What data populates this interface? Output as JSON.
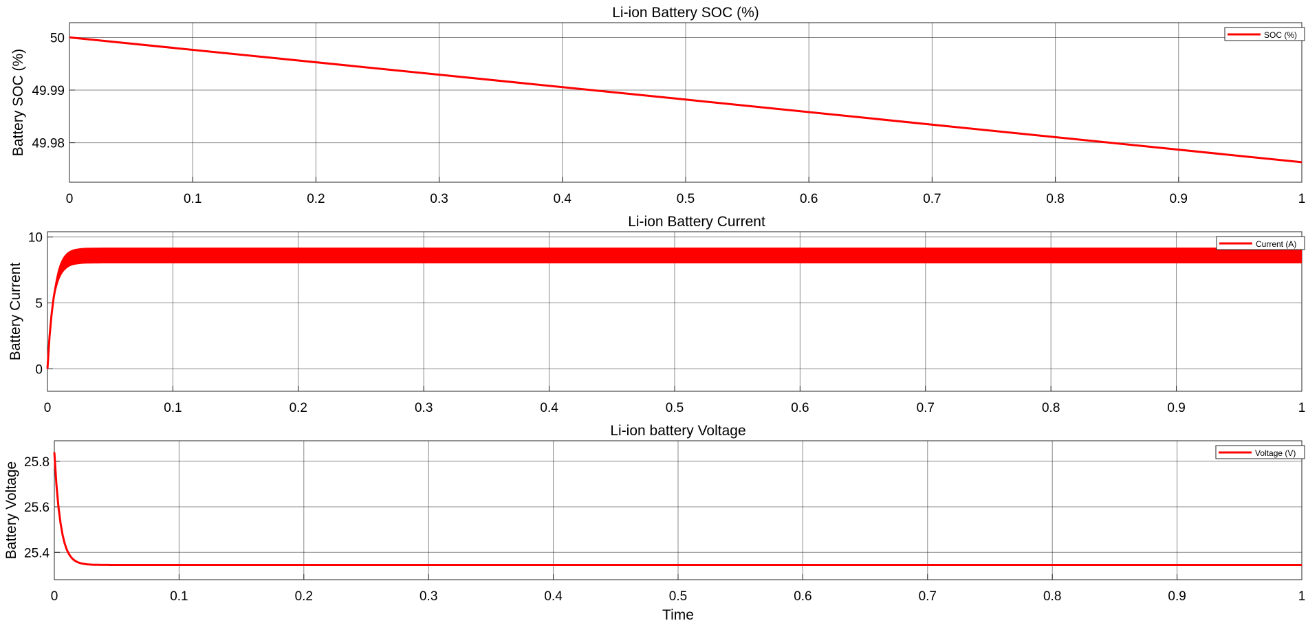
{
  "chart_data": [
    {
      "type": "line",
      "title": "Li-ion Battery SOC (%)",
      "xlabel": "",
      "ylabel": "Battery SOC (%)",
      "xlim": [
        0,
        1
      ],
      "ylim": [
        49.9725,
        50.0028
      ],
      "xticks": [
        0,
        0.1,
        0.2,
        0.3,
        0.4,
        0.5,
        0.6,
        0.7,
        0.8,
        0.9,
        1
      ],
      "xtick_labels": [
        "0",
        "0.1",
        "0.2",
        "0.3",
        "0.4",
        "0.5",
        "0.6",
        "0.7",
        "0.8",
        "0.9",
        "1"
      ],
      "yticks": [
        49.98,
        49.99,
        50
      ],
      "ytick_labels": [
        "49.98",
        "49.99",
        "50"
      ],
      "grid": true,
      "legend_position": "top-right",
      "color": "#ff0000",
      "series": [
        {
          "name": "SOC (%)",
          "x": [
            0,
            0.5,
            1
          ],
          "y": [
            50.0,
            49.9882,
            49.9763
          ]
        }
      ]
    },
    {
      "type": "line",
      "title": "Li-ion Battery Current",
      "xlabel": "",
      "ylabel": "Battery Current",
      "xlim": [
        0,
        1
      ],
      "ylim": [
        -1.7,
        10.4
      ],
      "xticks": [
        0,
        0.1,
        0.2,
        0.3,
        0.4,
        0.5,
        0.6,
        0.7,
        0.8,
        0.9,
        1
      ],
      "xtick_labels": [
        "0",
        "0.1",
        "0.2",
        "0.3",
        "0.4",
        "0.5",
        "0.6",
        "0.7",
        "0.8",
        "0.9",
        "1"
      ],
      "yticks": [
        0,
        5,
        10
      ],
      "ytick_labels": [
        "0",
        "5",
        "10"
      ],
      "grid": true,
      "legend_position": "top-right",
      "color": "#ff0000",
      "series": [
        {
          "name": "Current (A)",
          "steady_mean": 8.6,
          "ripple_min": 8.0,
          "ripple_max": 9.2,
          "rise_time_constant": 0.005
        }
      ]
    },
    {
      "type": "line",
      "title": "Li-ion battery Voltage",
      "xlabel": "Time",
      "ylabel": "Battery Voltage",
      "xlim": [
        0,
        1
      ],
      "ylim": [
        25.28,
        25.89
      ],
      "xticks": [
        0,
        0.1,
        0.2,
        0.3,
        0.4,
        0.5,
        0.6,
        0.7,
        0.8,
        0.9,
        1
      ],
      "xtick_labels": [
        "0",
        "0.1",
        "0.2",
        "0.3",
        "0.4",
        "0.5",
        "0.6",
        "0.7",
        "0.8",
        "0.9",
        "1"
      ],
      "yticks": [
        25.4,
        25.6,
        25.8
      ],
      "ytick_labels": [
        "25.4",
        "25.6",
        "25.8"
      ],
      "grid": true,
      "legend_position": "top-right",
      "color": "#ff0000",
      "series": [
        {
          "name": "Voltage (V)",
          "initial": 25.84,
          "steady": 25.345,
          "decay_time_constant": 0.005
        }
      ]
    }
  ]
}
